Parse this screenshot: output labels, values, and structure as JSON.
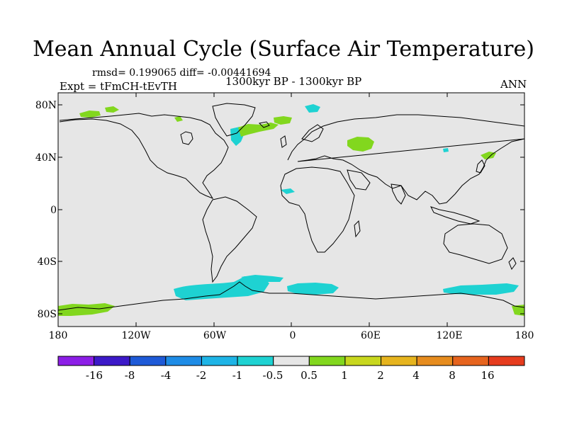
{
  "title": "Mean Annual Cycle (Surface Air Temperature)",
  "stats": "rmsd= 0.199065 diff= -0.00441694",
  "experiment": "Expt = tFmCH-tEvTH",
  "period": "1300kyr BP - 1300kyr BP",
  "season": "ANN",
  "lat_labels": [
    "80N",
    "40N",
    "0",
    "40S",
    "80S"
  ],
  "lon_labels": [
    "180",
    "120W",
    "60W",
    "0",
    "60E",
    "120E",
    "180"
  ],
  "colorbar": {
    "labels": [
      "-16",
      "-8",
      "-4",
      "-2",
      "-1",
      "-0.5",
      "0.5",
      "1",
      "2",
      "4",
      "8",
      "16"
    ],
    "colors": [
      "#8c1ee6",
      "#3c19c8",
      "#1e5ad7",
      "#1e8ce6",
      "#1eb4e6",
      "#1ed2d2",
      "#e6e6e6",
      "#82d71e",
      "#c8d71e",
      "#e6b41e",
      "#e68c1e",
      "#e6641e",
      "#e63c1e"
    ]
  },
  "map_colors": {
    "ocean_land": "#e6e6e6",
    "cool": "#1ed2d2",
    "warm": "#82d71e",
    "coast": "#000000"
  }
}
